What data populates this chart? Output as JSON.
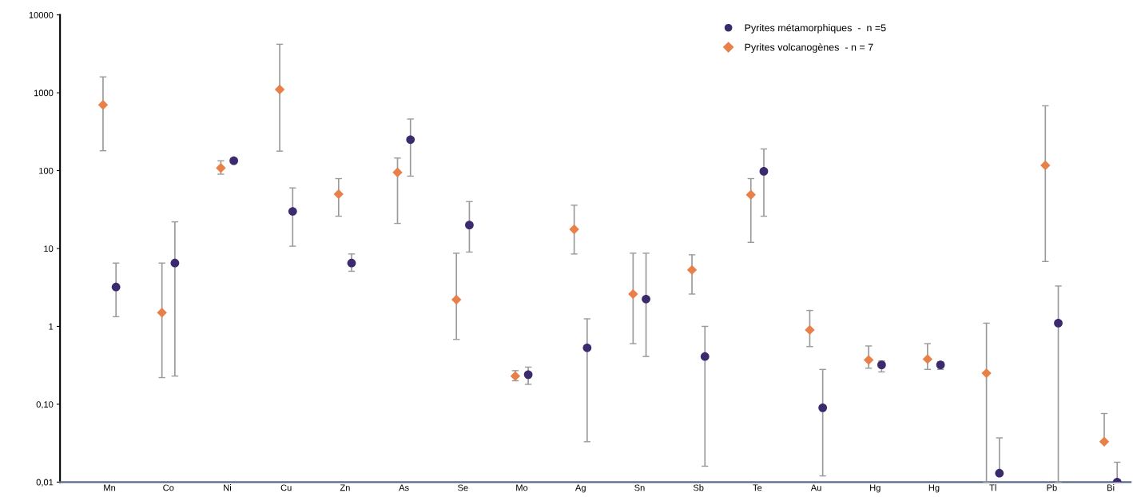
{
  "chart_data": {
    "type": "scatter",
    "log": "y",
    "categories": [
      "Mn",
      "Co",
      "Ni",
      "Cu",
      "Zn",
      "As",
      "Se",
      "Mo",
      "Ag",
      "Sn",
      "Sb",
      "Te",
      "Au",
      "Hg",
      "Hg",
      "Tl",
      "Pb",
      "Bi"
    ],
    "ylim": [
      0.01,
      10000
    ],
    "yticks": [
      {
        "value": 0.01,
        "label": "0,01"
      },
      {
        "value": 0.1,
        "label": "0,10"
      },
      1,
      10,
      100,
      1000,
      10000
    ],
    "grid": false,
    "legend": "top right",
    "series": [
      {
        "name": "Pyrites volcanogènes  - n = 7",
        "color": "#e8804a",
        "marker": "diamond",
        "values": [
          700,
          1.5,
          108,
          1100,
          50,
          95,
          2.2,
          0.23,
          17.6,
          2.6,
          5.3,
          49,
          0.9,
          0.37,
          0.38,
          0.25,
          117,
          0.033
        ],
        "errors": [
          [
            180,
            1600
          ],
          [
            0.22,
            6.5
          ],
          [
            90,
            134
          ],
          [
            178,
            4200
          ],
          [
            26,
            79
          ],
          [
            21,
            145
          ],
          [
            0.68,
            8.7
          ],
          [
            0.2,
            0.27
          ],
          [
            8.5,
            36
          ],
          [
            0.6,
            8.7
          ],
          [
            2.6,
            8.3
          ],
          [
            12,
            79
          ],
          [
            0.55,
            1.6
          ],
          [
            0.29,
            0.56
          ],
          [
            0.28,
            0.6
          ],
          [
            0.01,
            1.1
          ],
          [
            6.8,
            680
          ],
          [
            0.033,
            0.076
          ]
        ]
      },
      {
        "name": "Pyrites métamorphiques  -  n =5",
        "color": "#3b2b6e",
        "marker": "circle",
        "values": [
          3.2,
          6.5,
          134,
          30,
          6.5,
          250,
          20,
          0.24,
          0.53,
          2.24,
          0.41,
          98,
          0.09,
          0.32,
          0.32,
          0.013,
          1.1,
          0.01
        ],
        "errors": [
          [
            1.33,
            6.5
          ],
          [
            0.23,
            22
          ],
          null,
          [
            10.7,
            60
          ],
          [
            5.1,
            8.5
          ],
          [
            85,
            460
          ],
          [
            9,
            40
          ],
          [
            0.18,
            0.3
          ],
          [
            0.033,
            1.25
          ],
          [
            0.41,
            8.7
          ],
          [
            0.016,
            1.0
          ],
          [
            26,
            190
          ],
          [
            0.012,
            0.28
          ],
          [
            0.26,
            0.36
          ],
          [
            0.28,
            0.35
          ],
          [
            0.013,
            0.037
          ],
          [
            0.01,
            3.3
          ],
          [
            0.01,
            0.018
          ]
        ]
      }
    ]
  }
}
